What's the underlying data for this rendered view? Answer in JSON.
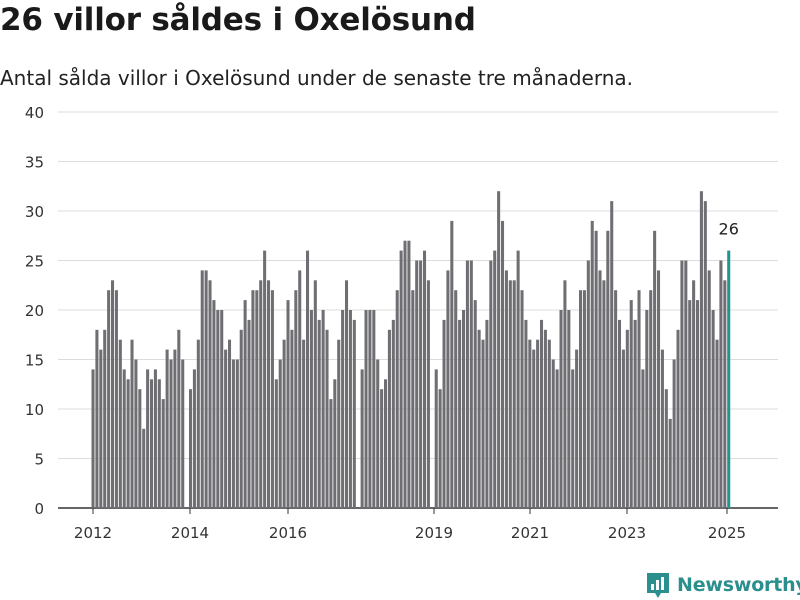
{
  "header": {
    "title": "26 villor såldes i Oxelösund",
    "subtitle": "Antal sålda villor i Oxelösund under de senaste tre månaderna."
  },
  "brand": {
    "name": "Newsworthy",
    "logo_icon": "bar-chart-icon"
  },
  "colors": {
    "bar": "#6f6e73",
    "highlight": "#1f9690",
    "grid": "#dcdcdc",
    "brand": "#2a8f8d"
  },
  "chart_data": {
    "type": "bar",
    "title": "26 villor såldes i Oxelösund",
    "subtitle": "Antal sålda villor i Oxelösund under de senaste tre månaderna.",
    "ylim": [
      0,
      40
    ],
    "y_ticks": [
      0,
      5,
      10,
      15,
      20,
      25,
      30,
      35,
      40
    ],
    "x_ticks": [
      "2012",
      "2014",
      "2016",
      "2019",
      "2021",
      "2023",
      "2025"
    ],
    "grid": true,
    "annotation": {
      "text": "26",
      "target": "last"
    },
    "values": [
      14,
      18,
      16,
      18,
      22,
      23,
      22,
      17,
      14,
      13,
      17,
      15,
      12,
      8,
      14,
      13,
      14,
      13,
      11,
      16,
      15,
      16,
      18,
      15,
      null,
      12,
      14,
      17,
      24,
      24,
      23,
      21,
      20,
      20,
      16,
      17,
      15,
      15,
      18,
      21,
      19,
      22,
      22,
      23,
      26,
      23,
      22,
      13,
      15,
      17,
      21,
      18,
      22,
      24,
      17,
      26,
      20,
      23,
      19,
      20,
      18,
      11,
      13,
      17,
      20,
      23,
      20,
      19,
      null,
      14,
      20,
      20,
      20,
      15,
      12,
      13,
      18,
      19,
      22,
      26,
      27,
      27,
      22,
      25,
      25,
      26,
      23,
      null,
      14,
      12,
      19,
      24,
      29,
      22,
      19,
      20,
      25,
      25,
      21,
      18,
      17,
      19,
      25,
      26,
      32,
      29,
      24,
      23,
      23,
      26,
      22,
      19,
      17,
      16,
      17,
      19,
      18,
      17,
      15,
      14,
      20,
      23,
      20,
      14,
      16,
      22,
      22,
      25,
      29,
      28,
      24,
      23,
      28,
      31,
      22,
      19,
      16,
      18,
      21,
      19,
      22,
      14,
      20,
      22,
      28,
      24,
      16,
      12,
      9,
      15,
      18,
      25,
      25,
      21,
      23,
      21,
      32,
      31,
      24,
      20,
      17,
      25,
      23,
      26
    ]
  }
}
